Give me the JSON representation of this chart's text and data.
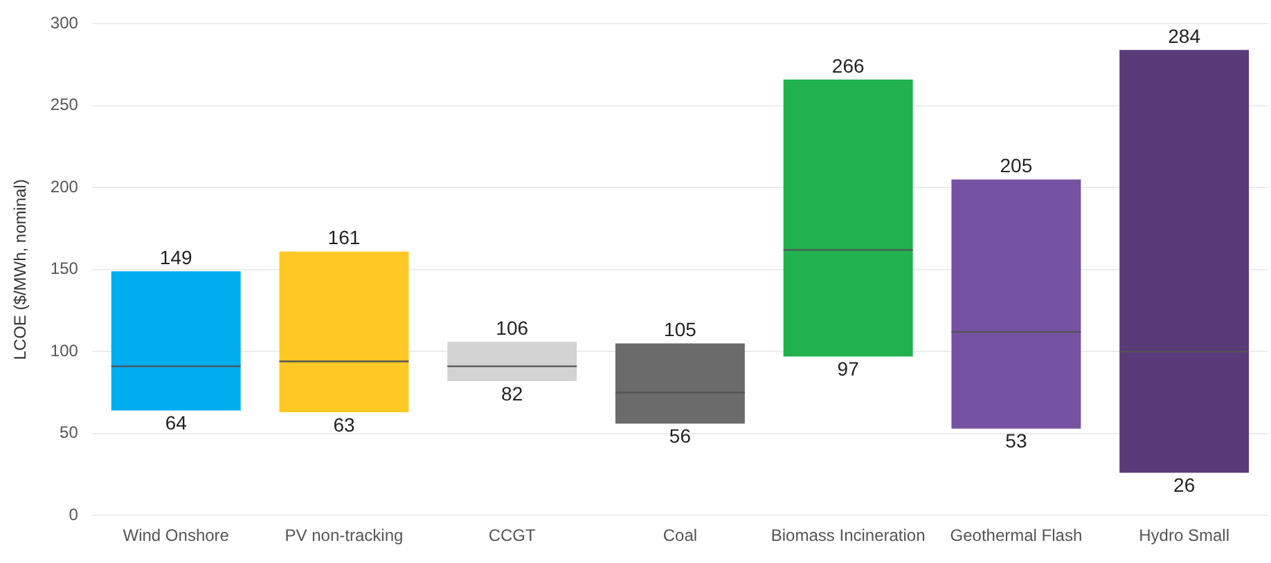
{
  "chart_data": {
    "type": "box",
    "ylabel": "LCOE ($/MWh, nominal)",
    "categories": [
      "Wind Onshore",
      "PV non-tracking",
      "CCGT",
      "Coal",
      "Biomass Incineration",
      "Geothermal Flash",
      "Hydro Small"
    ],
    "boxes": [
      {
        "low": 64,
        "q1": 64,
        "median": 91,
        "q3": 149,
        "high": 149
      },
      {
        "low": 63,
        "q1": 63,
        "median": 94,
        "q3": 161,
        "high": 161
      },
      {
        "low": 82,
        "q1": 82,
        "median": 91,
        "q3": 106,
        "high": 106
      },
      {
        "low": 56,
        "q1": 56,
        "median": 75,
        "q3": 105,
        "high": 105
      },
      {
        "low": 97,
        "q1": 97,
        "median": 162,
        "q3": 266,
        "high": 266
      },
      {
        "low": 53,
        "q1": 53,
        "median": 112,
        "q3": 205,
        "high": 205
      },
      {
        "low": 26,
        "q1": 26,
        "median": 100,
        "q3": 284,
        "high": 284
      }
    ],
    "colors": [
      "#00adef",
      "#ffc824",
      "#d3d3d3",
      "#6b6b6b",
      "#21b24f",
      "#7652a2",
      "#5a3a78"
    ],
    "annotations": [
      {
        "text": "149",
        "x": "Wind Onshore",
        "y": 149
      },
      {
        "text": "64",
        "x": "Wind Onshore",
        "y": 64
      },
      {
        "text": "161",
        "x": "PV non-tracking",
        "y": 161
      },
      {
        "text": "63",
        "x": "PV non-tracking",
        "y": 63
      },
      {
        "text": "106",
        "x": "CCGT",
        "y": 106
      },
      {
        "text": "82",
        "x": "CCGT",
        "y": 82
      },
      {
        "text": "105",
        "x": "Coal",
        "y": 105
      },
      {
        "text": "56",
        "x": "Coal",
        "y": 56
      },
      {
        "text": "266",
        "x": "Biomass Incineration",
        "y": 266
      },
      {
        "text": "97",
        "x": "Biomass Incineration",
        "y": 97
      },
      {
        "text": "205",
        "x": "Geothermal Flash",
        "y": 205
      },
      {
        "text": "53",
        "x": "Geothermal Flash",
        "y": 53
      },
      {
        "text": "284",
        "x": "Hydro Small",
        "y": 284
      },
      {
        "text": "26",
        "x": "Hydro Small",
        "y": 26
      }
    ],
    "ylim": [
      0,
      300
    ],
    "yticks": [
      0,
      50,
      100,
      150,
      200,
      250,
      300
    ],
    "grid": "y"
  }
}
